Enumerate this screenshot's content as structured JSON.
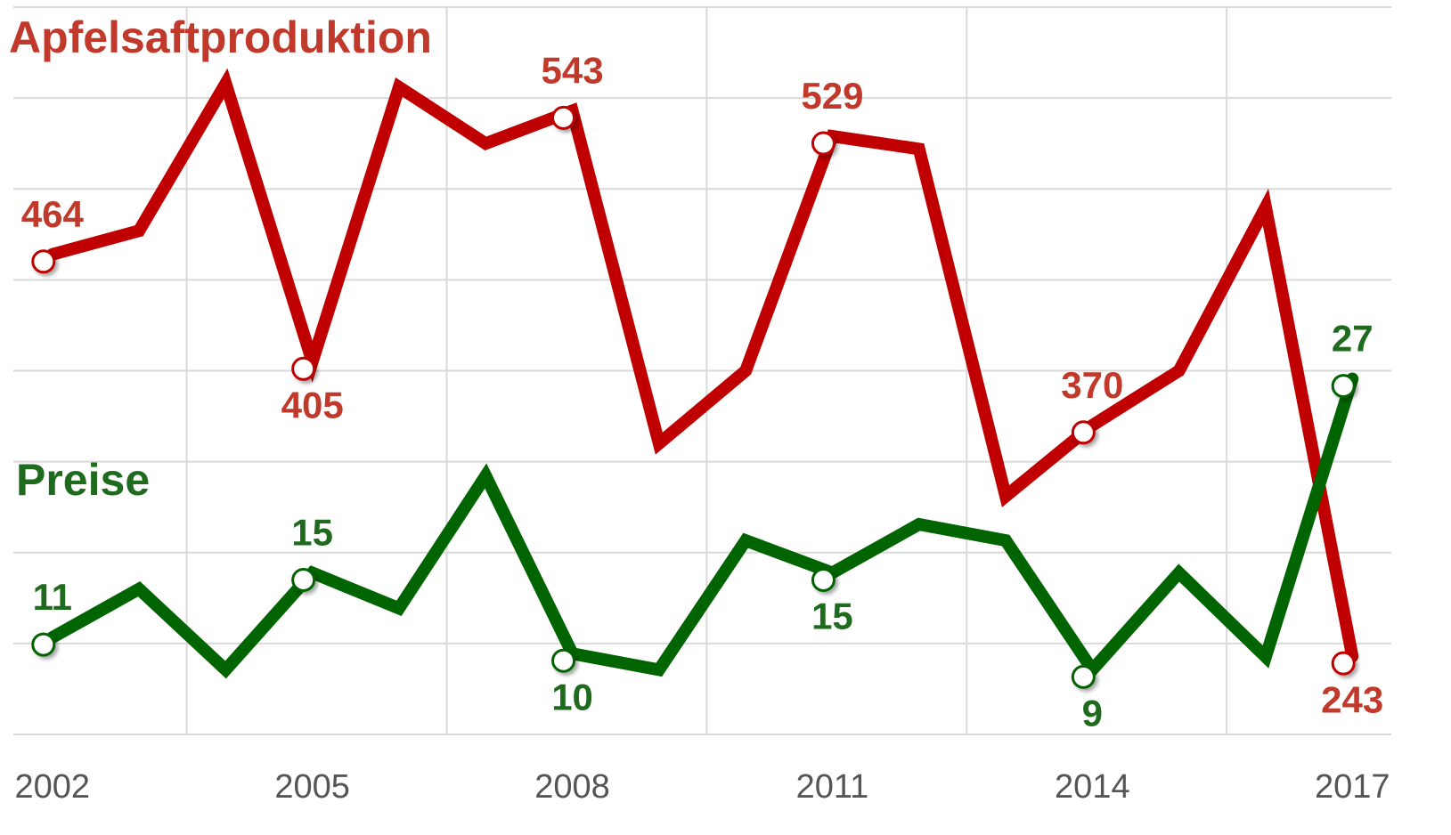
{
  "chart_data": {
    "type": "line",
    "x": [
      2002,
      2003,
      2004,
      2005,
      2006,
      2007,
      2008,
      2009,
      2010,
      2011,
      2012,
      2013,
      2014,
      2015,
      2016,
      2017
    ],
    "xticks": [
      2002,
      2005,
      2008,
      2011,
      2014,
      2017
    ],
    "xlim": [
      2001.55,
      2017.45
    ],
    "ylim": [
      200,
      600
    ],
    "yticks": [
      200,
      250,
      300,
      350,
      400,
      450,
      500,
      550,
      600
    ],
    "y2lim": [
      5,
      50
    ],
    "grid": true,
    "label_every": 3,
    "series": [
      {
        "name": "Apfelsaftproduktion",
        "color": "#c00000",
        "values": [
          464,
          477,
          558,
          405,
          556,
          525,
          543,
          360,
          400,
          529,
          522,
          331,
          370,
          400,
          490,
          243
        ]
      },
      {
        "name": "Preise",
        "color": "#006400",
        "axis": "y2",
        "values": [
          11,
          14,
          9,
          15,
          12.8,
          21,
          10,
          9,
          17,
          15,
          18,
          17,
          9,
          15,
          9.8,
          27
        ]
      }
    ]
  }
}
